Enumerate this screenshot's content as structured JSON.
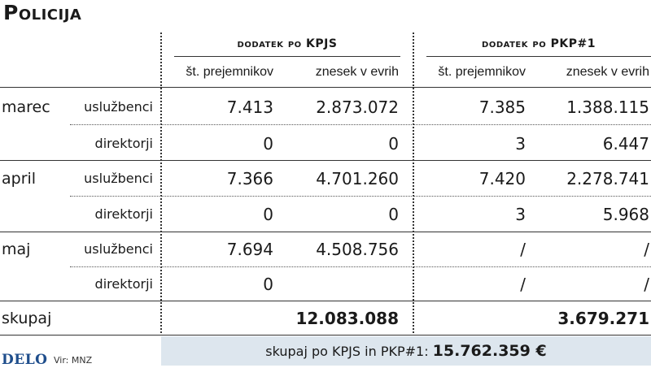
{
  "title": "Policija",
  "groups": [
    {
      "label": "dodatek po KPJS"
    },
    {
      "label": "dodatek po PKP#1"
    }
  ],
  "column_headers": [
    "št. prejemnikov",
    "znesek v evrih",
    "št. prejemnikov",
    "znesek v evrih"
  ],
  "rows": [
    {
      "month": "marec",
      "type": "uslužbenci",
      "values": [
        "7.413",
        "2.873.072",
        "7.385",
        "1.388.115"
      ]
    },
    {
      "month": "",
      "type": "direktorji",
      "values": [
        "0",
        "0",
        "3",
        "6.447"
      ]
    },
    {
      "month": "april",
      "type": "uslužbenci",
      "values": [
        "7.366",
        "4.701.260",
        "7.420",
        "2.278.741"
      ]
    },
    {
      "month": "",
      "type": "direktorji",
      "values": [
        "0",
        "0",
        "3",
        "5.968"
      ]
    },
    {
      "month": "maj",
      "type": "uslužbenci",
      "values": [
        "7.694",
        "4.508.756",
        "/",
        "/"
      ]
    },
    {
      "month": "",
      "type": "direktorji",
      "values": [
        "0",
        "",
        "/",
        "/"
      ]
    }
  ],
  "total": {
    "label": "skupaj",
    "kpjs": "12.083.088",
    "pkp": "3.679.271"
  },
  "footer": {
    "label": "skupaj po KPJS in PKP#1:",
    "value": "15.762.359 €"
  },
  "brand": {
    "logo": "DELO",
    "source": "Vir: MNZ",
    "color": "#1f4e8c"
  },
  "colors": {
    "footer_bg": "#dde6ee",
    "text": "#1a1a1a"
  }
}
